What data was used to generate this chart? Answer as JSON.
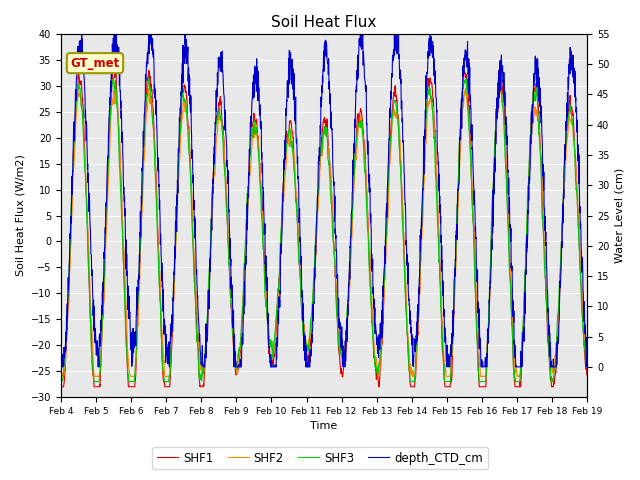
{
  "title": "Soil Heat Flux",
  "ylabel_left": "Soil Heat Flux (W/m2)",
  "ylabel_right": "Water Level (cm)",
  "xlabel": "Time",
  "ylim_left": [
    -30,
    40
  ],
  "ylim_right": [
    -5,
    55
  ],
  "yticks_left": [
    -30,
    -25,
    -20,
    -15,
    -10,
    -5,
    0,
    5,
    10,
    15,
    20,
    25,
    30,
    35,
    40
  ],
  "yticks_right": [
    0,
    5,
    10,
    15,
    20,
    25,
    30,
    35,
    40,
    45,
    50,
    55
  ],
  "colors": {
    "SHF1": "#dd0000",
    "SHF2": "#ff8800",
    "SHF3": "#00cc00",
    "depth_CTD_cm": "#0000cc"
  },
  "legend_labels": [
    "SHF1",
    "SHF2",
    "SHF3",
    "depth_CTD_cm"
  ],
  "annotation_text": "GT_met",
  "annotation_color": "#cc0000",
  "annotation_bg": "#ffffcc",
  "annotation_border": "#999900",
  "background_color": "#e8e8e8",
  "n_days": 15,
  "ppd": 144,
  "figsize": [
    6.4,
    4.8
  ],
  "dpi": 100
}
